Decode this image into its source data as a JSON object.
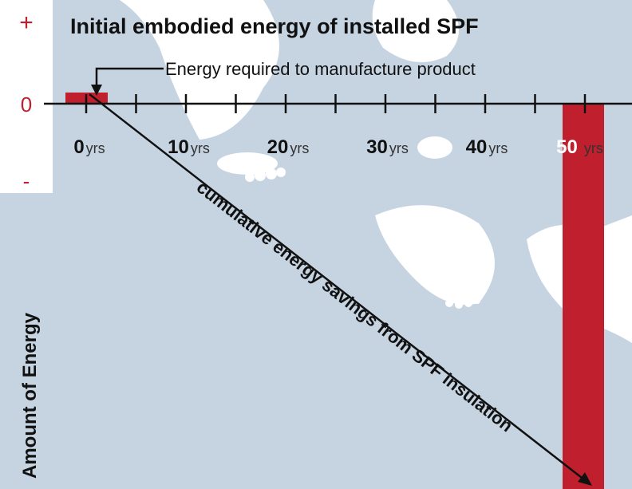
{
  "title": "Initial embodied energy of installed SPF",
  "axis": {
    "plus": "+",
    "zero": "0",
    "minus": "-",
    "label": "Amount of Energy"
  },
  "callout": "Energy required to manufacture product",
  "ticks": [
    {
      "number": 0,
      "unit": "yrs"
    },
    {
      "number": 10,
      "unit": "yrs"
    },
    {
      "number": 20,
      "unit": "yrs"
    },
    {
      "number": 30,
      "unit": "yrs"
    },
    {
      "number": 40,
      "unit": "yrs"
    },
    {
      "number": 50,
      "unit": "yrs"
    }
  ],
  "savings_label": "cumulative energy savings from SPF insulation"
}
